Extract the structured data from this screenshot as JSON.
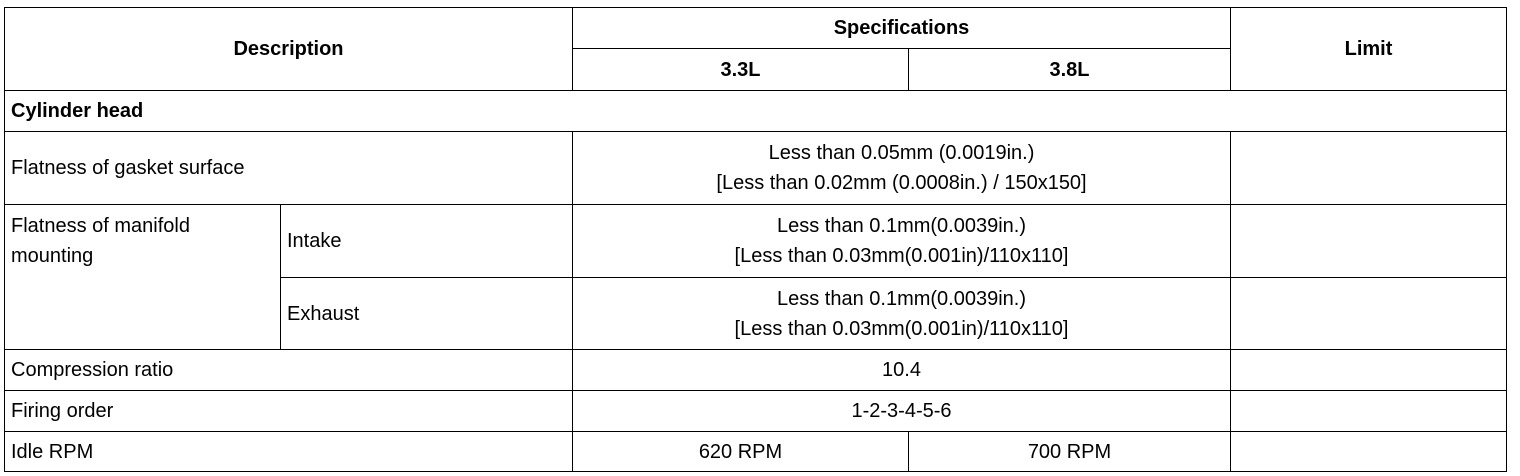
{
  "header": {
    "description": "Description",
    "specifications": "Specifications",
    "limit": "Limit",
    "engines": [
      "3.3L",
      "3.8L"
    ]
  },
  "section": {
    "title": "Cylinder head"
  },
  "rows": [
    {
      "description": "Flatness of gasket surface",
      "spec": [
        "Less than 0.05mm (0.0019in.)",
        "[Less than 0.02mm (0.0008in.) / 150x150]"
      ]
    },
    {
      "description": "Flatness of manifold mounting",
      "sub": "Intake",
      "spec": [
        "Less than 0.1mm(0.0039in.)",
        "[Less than 0.03mm(0.001in)/110x110]"
      ]
    },
    {
      "sub": "Exhaust",
      "spec": [
        "Less than 0.1mm(0.0039in.)",
        "[Less than 0.03mm(0.001in)/110x110]"
      ]
    },
    {
      "description": "Compression ratio",
      "spec": "10.4"
    },
    {
      "description": "Firing order",
      "spec": "1-2-3-4-5-6"
    },
    {
      "description": "Idle RPM",
      "spec": [
        "620 RPM",
        "700 RPM"
      ]
    }
  ]
}
